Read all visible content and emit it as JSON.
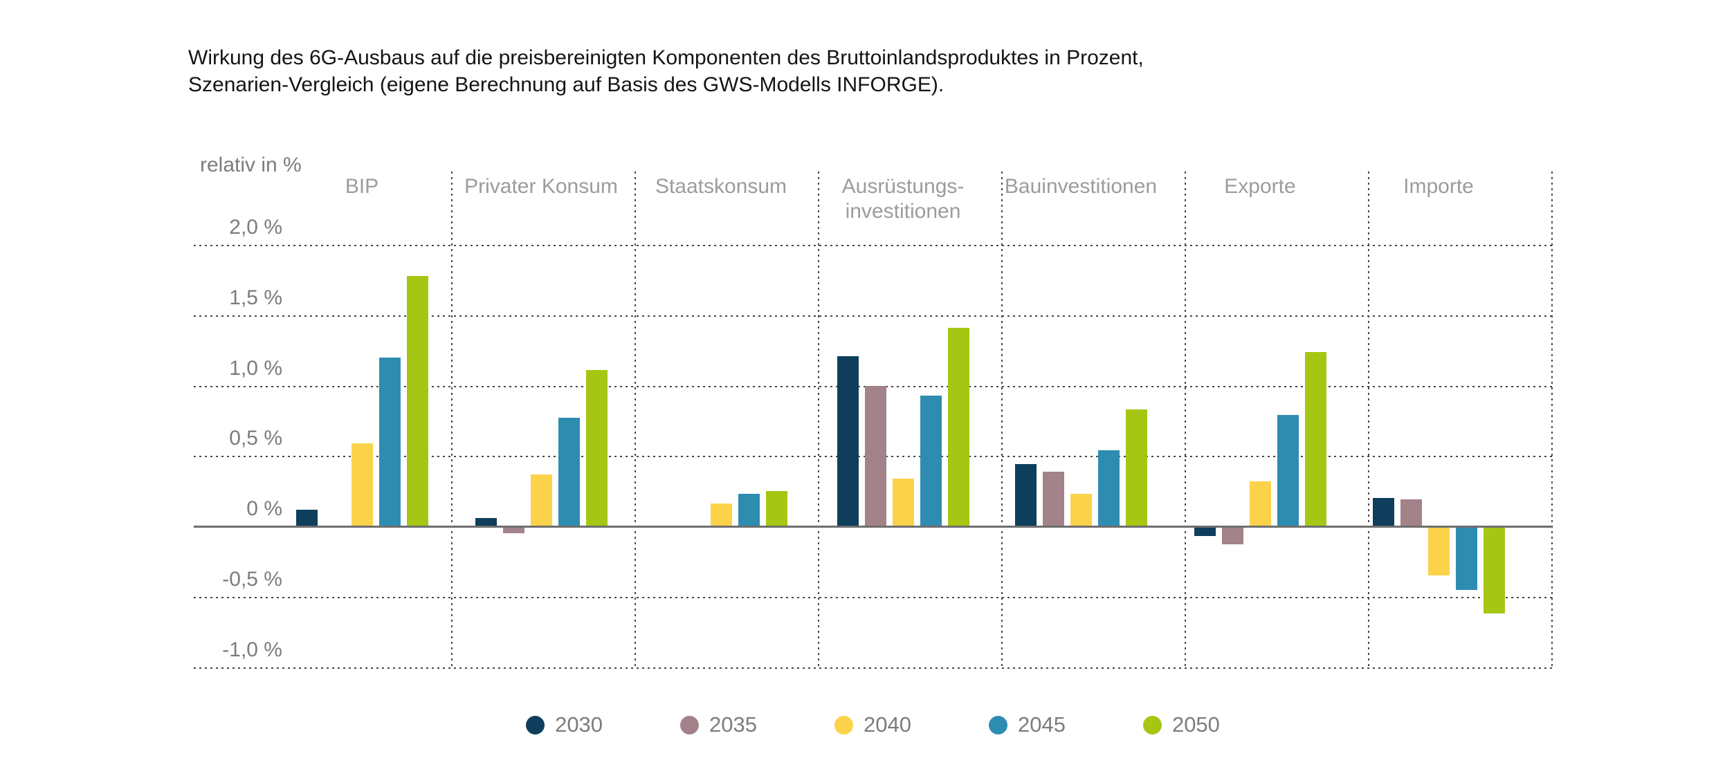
{
  "title": {
    "line1": "Wirkung des 6G-Ausbaus auf die preisbereinigten Komponenten des Bruttoinlandsproduktes in Prozent,",
    "line2": "Szenarien-Vergleich (eigene Berechnung auf Basis des GWS-Modells INFORGE)."
  },
  "y_axis": {
    "label": "relativ in %",
    "ticks": [
      {
        "label": "2,0 %",
        "value": 2.0
      },
      {
        "label": "1,5 %",
        "value": 1.5
      },
      {
        "label": "1,0 %",
        "value": 1.0
      },
      {
        "label": "0,5 %",
        "value": 0.5
      },
      {
        "label": "0 %",
        "value": 0.0
      },
      {
        "label": "-0,5 %",
        "value": -0.5
      },
      {
        "label": "-1,0 %",
        "value": -1.0
      }
    ]
  },
  "chart_data": {
    "type": "bar",
    "categories": [
      "BIP",
      "Privater Konsum",
      "Staatskonsum",
      "Ausrüstungsinvestitionen",
      "Bauinvestitionen",
      "Exporte",
      "Importe"
    ],
    "category_label_lines": [
      [
        "BIP"
      ],
      [
        "Privater Konsum"
      ],
      [
        "Staatskonsum"
      ],
      [
        "Ausrüstungs-",
        "investitionen"
      ],
      [
        "Bauinvestitionen"
      ],
      [
        "Exporte"
      ],
      [
        "Importe"
      ]
    ],
    "series": [
      {
        "name": "2030",
        "color": "#0e3e5c",
        "values": [
          0.12,
          0.06,
          0.0,
          1.21,
          0.44,
          -0.07,
          0.2
        ]
      },
      {
        "name": "2035",
        "color": "#a3828a",
        "values": [
          0.0,
          -0.05,
          0.0,
          1.0,
          0.39,
          -0.13,
          0.19
        ]
      },
      {
        "name": "2040",
        "color": "#fcd24b",
        "values": [
          0.59,
          0.37,
          0.16,
          0.34,
          0.23,
          0.32,
          -0.35
        ]
      },
      {
        "name": "2045",
        "color": "#2e8cb0",
        "values": [
          1.2,
          0.77,
          0.23,
          0.93,
          0.54,
          0.79,
          -0.45
        ]
      },
      {
        "name": "2050",
        "color": "#a6c614",
        "values": [
          1.78,
          1.11,
          0.25,
          1.41,
          0.83,
          1.24,
          -0.62
        ]
      }
    ],
    "ylabel": "relativ in %",
    "ylim": [
      -1.25,
      2.5
    ],
    "grid": "horizontal dotted gridlines every 0,5 %, dotted vertical category separators, solid zero axis",
    "legend_position": "bottom-center"
  }
}
